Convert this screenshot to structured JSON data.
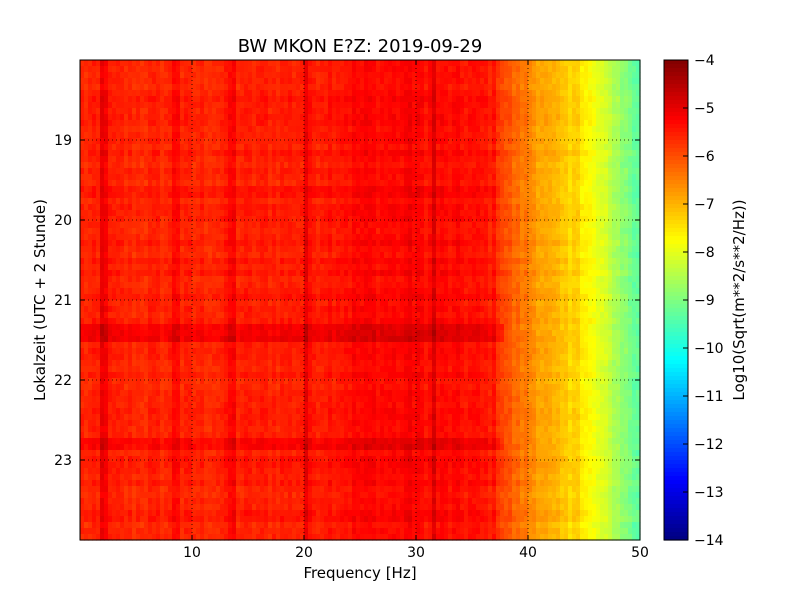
{
  "chart_data": {
    "type": "heatmap",
    "title": "BW MKON E?Z: 2019-09-29",
    "xlabel": "Frequency [Hz]",
    "ylabel": "Lokalzeit (UTC + 2 Stunde)",
    "xlim": [
      0,
      50
    ],
    "ylim": [
      24,
      18
    ],
    "x_ticks": [
      10,
      20,
      30,
      40,
      50
    ],
    "y_ticks": [
      19,
      20,
      21,
      22,
      23
    ],
    "grid": true,
    "colormap": "jet",
    "colorbar": {
      "label": "Log10(Sqrt(m**2/s**2/Hz))",
      "range": [
        -14,
        -4
      ],
      "ticks": [
        -4,
        -5,
        -6,
        -7,
        -8,
        -9,
        -10,
        -11,
        -12,
        -13,
        -14
      ]
    },
    "frequency_profile": {
      "frequency_hz": [
        0,
        5,
        10,
        15,
        20,
        25,
        30,
        35,
        37,
        38,
        39,
        40,
        42,
        44,
        46,
        48,
        50
      ],
      "level": [
        -5.6,
        -5.6,
        -5.6,
        -5.55,
        -5.5,
        -5.3,
        -5.3,
        -5.4,
        -5.5,
        -6.0,
        -6.3,
        -6.5,
        -7.0,
        -7.4,
        -7.9,
        -8.6,
        -9.4
      ]
    },
    "vertical_lines_hz": [
      {
        "f": 2.2,
        "delta": 0.5
      },
      {
        "f": 8.6,
        "delta": 0.35
      },
      {
        "f": 13.6,
        "delta": 0.3
      },
      {
        "f": 20.1,
        "delta": 0.5
      },
      {
        "f": 29.5,
        "delta": 0.25
      },
      {
        "f": 31.6,
        "delta": 0.4
      },
      {
        "f": 44.3,
        "delta": 0.3
      }
    ],
    "dark_time_bands_hours": [
      {
        "from": 19.55,
        "to": 19.75,
        "delta": 0.2
      },
      {
        "from": 21.3,
        "to": 21.55,
        "delta": 0.4
      },
      {
        "from": 22.7,
        "to": 22.9,
        "delta": 0.3
      }
    ]
  }
}
